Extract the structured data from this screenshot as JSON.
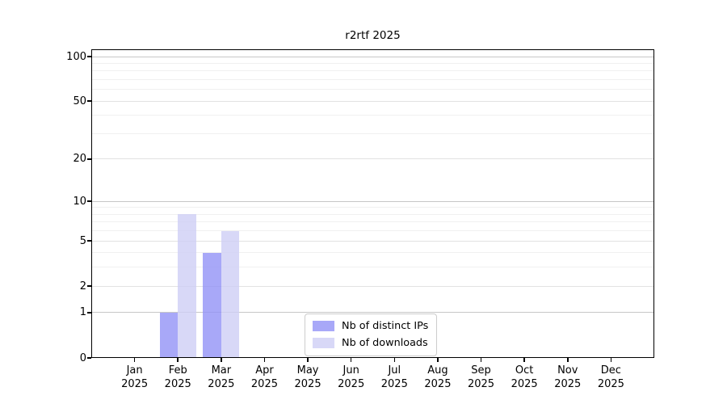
{
  "chart_data": {
    "type": "bar",
    "title": "r2rtf 2025",
    "x_year_label": "2025",
    "categories": [
      "Jan",
      "Feb",
      "Mar",
      "Apr",
      "May",
      "Jun",
      "Jul",
      "Aug",
      "Sep",
      "Oct",
      "Nov",
      "Dec"
    ],
    "series": [
      {
        "name": "Nb of distinct IPs",
        "color": "#9292f6",
        "opacity": 0.8,
        "values": [
          0,
          1,
          4,
          0,
          0,
          0,
          0,
          0,
          0,
          0,
          0,
          0
        ]
      },
      {
        "name": "Nb of downloads",
        "color": "#cecef5",
        "opacity": 0.8,
        "values": [
          0,
          8,
          6,
          0,
          0,
          0,
          0,
          0,
          0,
          0,
          0,
          0
        ]
      }
    ],
    "xlabel": "",
    "ylabel": "",
    "y_scale": "log1p",
    "ylim": [
      0,
      112
    ],
    "y_ticks_major": [
      0,
      1,
      2,
      5,
      10,
      20,
      50,
      100
    ],
    "y_grid_minor": [
      3,
      4,
      6,
      7,
      8,
      9,
      30,
      40,
      60,
      70,
      80,
      90
    ],
    "grid": "on",
    "legend_position": "bottom-center",
    "grid_colors": {
      "power10": "#c7c7c7",
      "major": "#e2e2e2",
      "minor": "#f0f0f0"
    },
    "axis_color": "#000000",
    "text_color": "#000000"
  }
}
